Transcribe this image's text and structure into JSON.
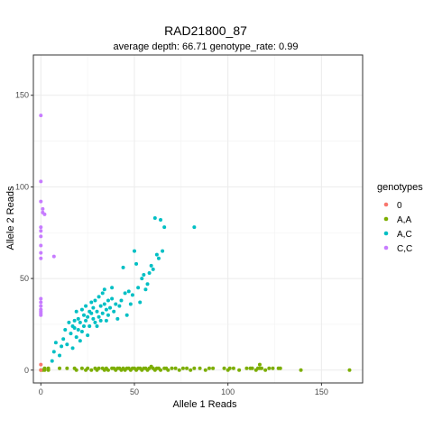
{
  "chart_data": {
    "type": "scatter",
    "title": "RAD21800_87",
    "subtitle": "average depth:  66.71  genotype_rate:  0.99",
    "xlabel": "Allele 1 Reads",
    "ylabel": "Allele 2 Reads",
    "xlim": [
      -4,
      172
    ],
    "ylim": [
      -7,
      172
    ],
    "xticks": [
      0,
      50,
      100,
      150
    ],
    "yticks": [
      0,
      50,
      100,
      150
    ],
    "grid": true,
    "legend": {
      "title": "genotypes",
      "placement": "right"
    },
    "series": [
      {
        "name": "0",
        "color": "#F8766D",
        "points": [
          [
            0,
            0
          ],
          [
            0,
            3
          ]
        ]
      },
      {
        "name": "A,A",
        "color": "#7CAE00",
        "points": [
          [
            0,
            0
          ],
          [
            1,
            0
          ],
          [
            2,
            0
          ],
          [
            2,
            1
          ],
          [
            4,
            1
          ],
          [
            4,
            0
          ],
          [
            10,
            1
          ],
          [
            14,
            1
          ],
          [
            18,
            1
          ],
          [
            19,
            0
          ],
          [
            22,
            1
          ],
          [
            24,
            0
          ],
          [
            25,
            1
          ],
          [
            27,
            0
          ],
          [
            29,
            1
          ],
          [
            30,
            0
          ],
          [
            31,
            1
          ],
          [
            33,
            1
          ],
          [
            34,
            0
          ],
          [
            35,
            1
          ],
          [
            36,
            0
          ],
          [
            38,
            1
          ],
          [
            39,
            1
          ],
          [
            40,
            0
          ],
          [
            41,
            1
          ],
          [
            42,
            1
          ],
          [
            43,
            0
          ],
          [
            44,
            1
          ],
          [
            45,
            0
          ],
          [
            46,
            1
          ],
          [
            47,
            1
          ],
          [
            48,
            0
          ],
          [
            49,
            1
          ],
          [
            50,
            1
          ],
          [
            51,
            0
          ],
          [
            52,
            1
          ],
          [
            53,
            1
          ],
          [
            54,
            0
          ],
          [
            55,
            1
          ],
          [
            56,
            1
          ],
          [
            57,
            0
          ],
          [
            58,
            1
          ],
          [
            59,
            2
          ],
          [
            60,
            1
          ],
          [
            61,
            0
          ],
          [
            62,
            1
          ],
          [
            63,
            1
          ],
          [
            64,
            0
          ],
          [
            66,
            1
          ],
          [
            67,
            1
          ],
          [
            68,
            0
          ],
          [
            70,
            1
          ],
          [
            72,
            1
          ],
          [
            74,
            0
          ],
          [
            76,
            1
          ],
          [
            78,
            1
          ],
          [
            80,
            0
          ],
          [
            82,
            1
          ],
          [
            85,
            1
          ],
          [
            88,
            0
          ],
          [
            90,
            1
          ],
          [
            92,
            1
          ],
          [
            98,
            1
          ],
          [
            100,
            0
          ],
          [
            101,
            1
          ],
          [
            103,
            1
          ],
          [
            106,
            0
          ],
          [
            110,
            1
          ],
          [
            112,
            1
          ],
          [
            113,
            1
          ],
          [
            115,
            0
          ],
          [
            116,
            1
          ],
          [
            117,
            1
          ],
          [
            117,
            3
          ],
          [
            118,
            1
          ],
          [
            120,
            0
          ],
          [
            122,
            1
          ],
          [
            124,
            1
          ],
          [
            127,
            1
          ],
          [
            128,
            1
          ],
          [
            139,
            0
          ],
          [
            165,
            0
          ]
        ]
      },
      {
        "name": "A,C",
        "color": "#00BFC4",
        "points": [
          [
            6,
            5
          ],
          [
            7,
            10
          ],
          [
            8,
            15
          ],
          [
            10,
            8
          ],
          [
            11,
            13
          ],
          [
            12,
            17
          ],
          [
            13,
            22
          ],
          [
            14,
            14
          ],
          [
            15,
            26
          ],
          [
            16,
            20
          ],
          [
            17,
            12
          ],
          [
            17,
            24
          ],
          [
            18,
            23
          ],
          [
            18,
            27
          ],
          [
            19,
            18
          ],
          [
            19,
            32
          ],
          [
            20,
            22
          ],
          [
            20,
            28
          ],
          [
            21,
            16
          ],
          [
            21,
            26
          ],
          [
            22,
            33
          ],
          [
            22,
            21
          ],
          [
            23,
            30
          ],
          [
            23,
            24
          ],
          [
            24,
            35
          ],
          [
            24,
            27
          ],
          [
            25,
            29
          ],
          [
            25,
            19
          ],
          [
            26,
            32
          ],
          [
            26,
            24
          ],
          [
            27,
            31
          ],
          [
            27,
            37
          ],
          [
            28,
            34
          ],
          [
            28,
            28
          ],
          [
            29,
            26
          ],
          [
            29,
            38
          ],
          [
            30,
            32
          ],
          [
            30,
            24
          ],
          [
            31,
            29
          ],
          [
            31,
            40
          ],
          [
            32,
            35
          ],
          [
            32,
            27
          ],
          [
            33,
            42
          ],
          [
            33,
            31
          ],
          [
            34,
            36
          ],
          [
            34,
            44
          ],
          [
            35,
            33
          ],
          [
            35,
            27
          ],
          [
            36,
            30
          ],
          [
            36,
            38
          ],
          [
            37,
            34
          ],
          [
            38,
            45
          ],
          [
            38,
            39
          ],
          [
            39,
            32
          ],
          [
            40,
            36
          ],
          [
            41,
            28
          ],
          [
            42,
            35
          ],
          [
            43,
            38
          ],
          [
            44,
            56
          ],
          [
            45,
            42
          ],
          [
            46,
            30
          ],
          [
            47,
            43
          ],
          [
            48,
            36
          ],
          [
            49,
            41
          ],
          [
            50,
            65
          ],
          [
            51,
            58
          ],
          [
            52,
            45
          ],
          [
            53,
            37
          ],
          [
            54,
            50
          ],
          [
            55,
            52
          ],
          [
            56,
            44
          ],
          [
            57,
            47
          ],
          [
            58,
            53
          ],
          [
            59,
            57
          ],
          [
            60,
            55
          ],
          [
            61,
            83
          ],
          [
            62,
            63
          ],
          [
            63,
            61
          ],
          [
            64,
            82
          ],
          [
            65,
            65
          ],
          [
            66,
            78
          ],
          [
            82,
            78
          ]
        ]
      },
      {
        "name": "C,C",
        "color": "#C77CFF",
        "points": [
          [
            0,
            139
          ],
          [
            0,
            103
          ],
          [
            0,
            92
          ],
          [
            1,
            88
          ],
          [
            1,
            86
          ],
          [
            2,
            85
          ],
          [
            0,
            78
          ],
          [
            0,
            76
          ],
          [
            0,
            73
          ],
          [
            0,
            68
          ],
          [
            0,
            64
          ],
          [
            7,
            62
          ],
          [
            0,
            61
          ],
          [
            0,
            39
          ],
          [
            0,
            37
          ],
          [
            0,
            35
          ],
          [
            0,
            33
          ],
          [
            0,
            32
          ],
          [
            0,
            31
          ],
          [
            0,
            30
          ]
        ]
      }
    ]
  }
}
